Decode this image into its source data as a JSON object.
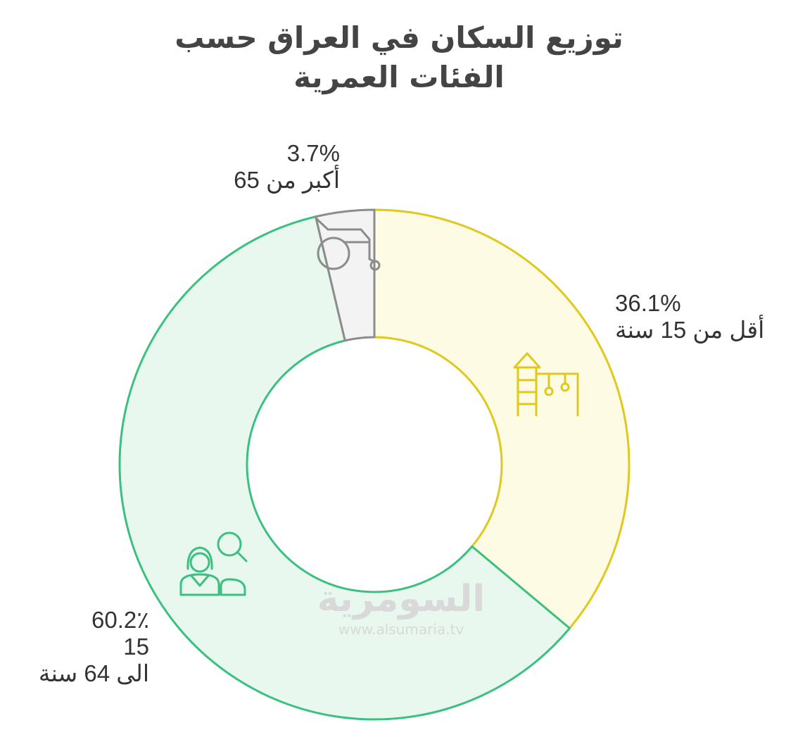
{
  "title": {
    "line1": "توزيع السكان في العراق حسب",
    "line2": "الفئات العمرية"
  },
  "chart_data": {
    "type": "pie",
    "variant": "donut",
    "title": "توزيع السكان في العراق حسب الفئات العمرية",
    "unit": "%",
    "slices": [
      {
        "label": "أقل من 15 سنة",
        "value": 36.1,
        "pct_text": "36.1%",
        "fill": "#fdfbe4",
        "stroke": "#e0c81c",
        "icon": "playground-icon"
      },
      {
        "label_lines": [
          "15",
          "الى 64 سنة"
        ],
        "value": 60.2,
        "pct_text": "60.2٪",
        "fill": "#e8f8ef",
        "stroke": "#3cc080",
        "icon": "people-icon"
      },
      {
        "label": "أكبر من 65",
        "value": 3.7,
        "pct_text": "3.7%",
        "fill": "#f3f3f3",
        "stroke": "#8c8c8c",
        "icon": "wheelchair-icon"
      }
    ],
    "start_angle": "12 o'clock",
    "direction": "clockwise"
  },
  "watermark": {
    "logo_text": "السومرية",
    "url": "www.alsumaria.tv"
  }
}
